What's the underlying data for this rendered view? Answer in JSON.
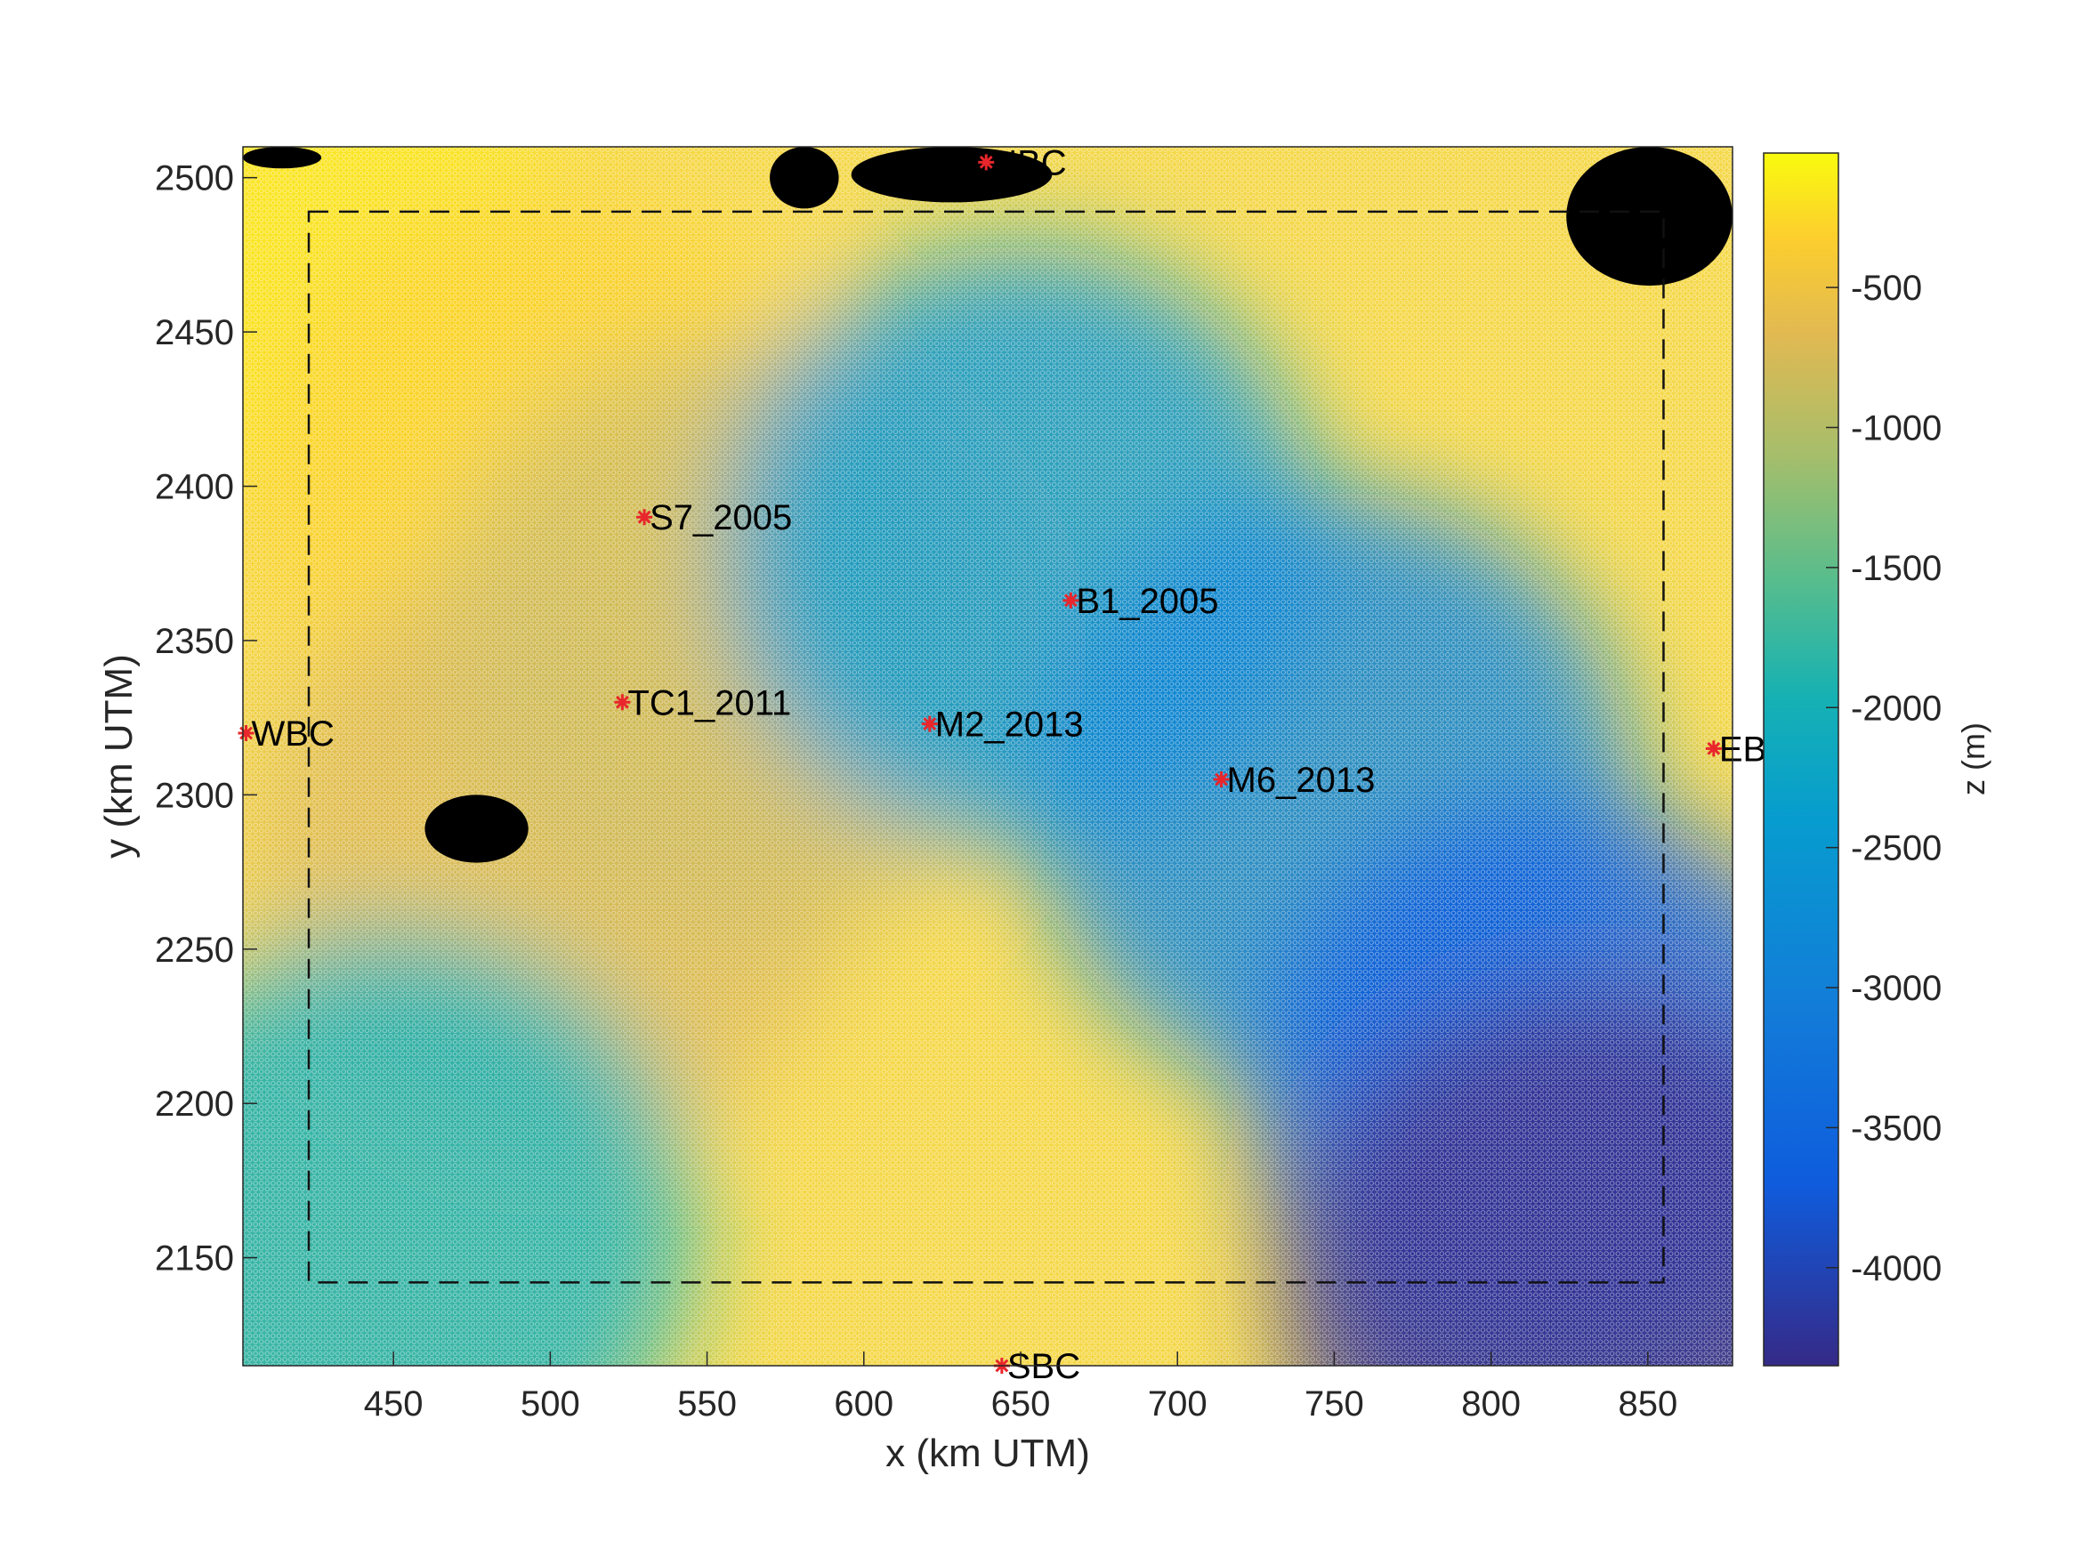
{
  "chart_data": {
    "type": "heatmap",
    "title": "",
    "xlabel": "x (km UTM)",
    "ylabel": "y (km UTM)",
    "colorbar_label": "z (m)",
    "colormap": "parula",
    "xlim": [
      402,
      877
    ],
    "ylim": [
      2115,
      2510
    ],
    "zlim": [
      -4350,
      -20
    ],
    "xticks": [
      "450",
      "500",
      "550",
      "600",
      "650",
      "700",
      "750",
      "800",
      "850"
    ],
    "yticks": [
      "2150",
      "2200",
      "2250",
      "2300",
      "2350",
      "2400",
      "2450",
      "2500"
    ],
    "colorbar_ticks": [
      "-500",
      "-1000",
      "-1500",
      "-2000",
      "-2500",
      "-3000",
      "-3500",
      "-4000"
    ],
    "grid": false,
    "inner_domain_box": {
      "x": [
        423,
        855
      ],
      "y": [
        2142,
        2489
      ],
      "style": "dashed"
    },
    "land_mask_color": "#000000",
    "land_areas": [
      {
        "x": [
          402,
          427
        ],
        "y": [
          2503,
          2510
        ]
      },
      {
        "x": [
          570,
          592
        ],
        "y": [
          2490,
          2510
        ]
      },
      {
        "x": [
          596,
          660
        ],
        "y": [
          2492,
          2510
        ]
      },
      {
        "x": [
          460,
          493
        ],
        "y": [
          2278,
          2300
        ]
      },
      {
        "x": [
          824,
          877
        ],
        "y": [
          2465,
          2510
        ]
      }
    ],
    "stations": [
      {
        "label": "NBC",
        "x": 639,
        "y": 2505
      },
      {
        "label": "S7_2005",
        "x": 530,
        "y": 2390
      },
      {
        "label": "B1_2005",
        "x": 666,
        "y": 2363
      },
      {
        "label": "TC1_2011",
        "x": 523,
        "y": 2330
      },
      {
        "label": "WBC",
        "x": 403,
        "y": 2320
      },
      {
        "label": "M2_2013",
        "x": 621,
        "y": 2323
      },
      {
        "label": "M6_2013",
        "x": 714,
        "y": 2305
      },
      {
        "label": "EB",
        "x": 871,
        "y": 2315
      },
      {
        "label": "SBC",
        "x": 644,
        "y": 2115
      }
    ],
    "bathymetry_gradient_stops": [
      {
        "x": 402,
        "y": 2500,
        "z": -150
      },
      {
        "x": 500,
        "y": 2400,
        "z": -300
      },
      {
        "x": 500,
        "y": 2280,
        "z": -700
      },
      {
        "x": 560,
        "y": 2350,
        "z": -800
      },
      {
        "x": 650,
        "y": 2380,
        "z": -2500
      },
      {
        "x": 750,
        "y": 2300,
        "z": -2900
      },
      {
        "x": 820,
        "y": 2200,
        "z": -3700
      },
      {
        "x": 830,
        "y": 2140,
        "z": -4300
      },
      {
        "x": 450,
        "y": 2160,
        "z": -2000
      }
    ],
    "colors": {
      "station_marker": "#e8262b",
      "axis": "#262626",
      "parula_low": "#352a87",
      "parula_high": "#f9fb0e"
    }
  }
}
